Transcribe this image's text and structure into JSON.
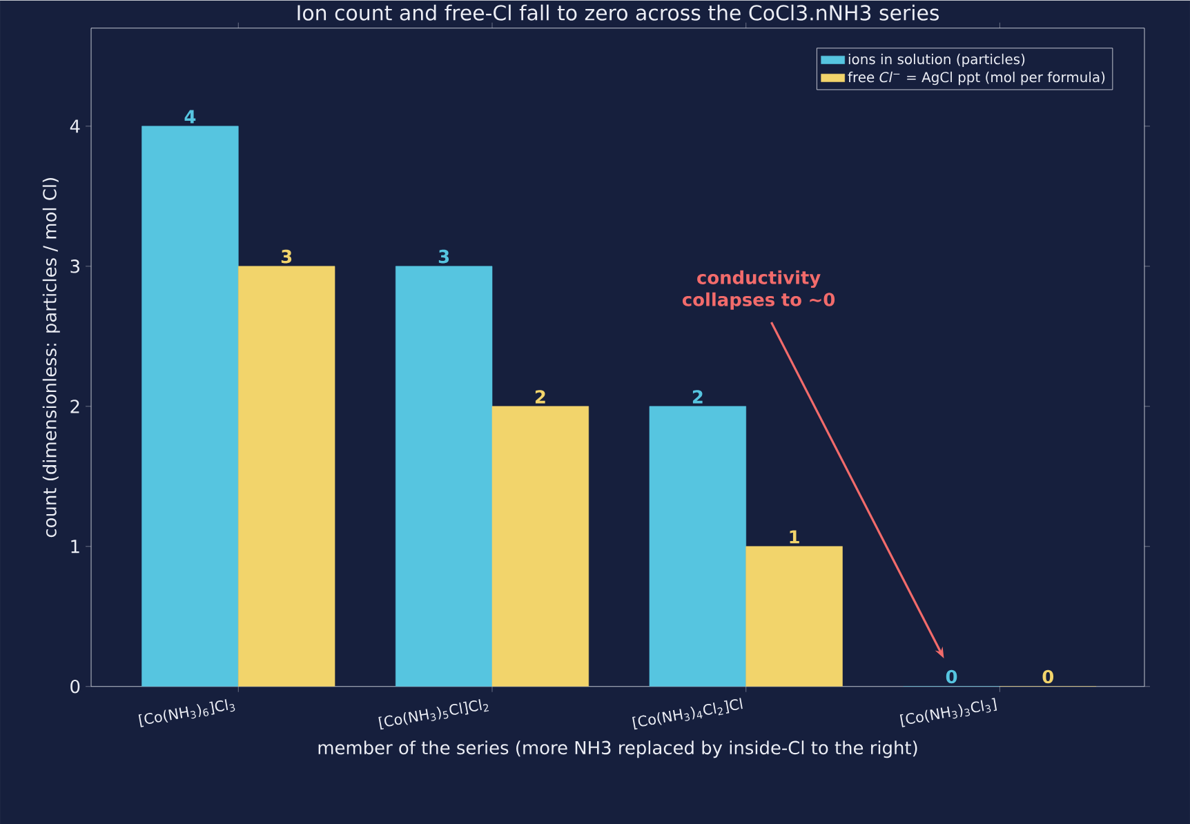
{
  "chart_data": {
    "type": "bar",
    "title": "Ion count and free-Cl fall to zero across the CoCl3.nNH3 series",
    "xlabel": "member of the series (more NH3 replaced by inside-Cl to the right)",
    "ylabel": "count  (dimensionless: particles / mol Cl)",
    "categories": [
      "[Co(NH$_{3}$)$_{6}$]Cl$_{3}$",
      "[Co(NH$_{3}$)$_{5}$Cl]Cl$_{2}$",
      "[Co(NH$_{3}$)$_{4}$Cl$_{2}$]Cl",
      "[Co(NH$_{3}$)$_{3}$Cl$_{3}$]"
    ],
    "series": [
      {
        "name": "ions in solution (particles)",
        "color": "#56c5e0",
        "values": [
          4,
          3,
          2,
          0
        ]
      },
      {
        "name": "free *Cl*$^{−}$ = AgCl ppt (mol per formula)",
        "color": "#f2d46b",
        "values": [
          3,
          2,
          1,
          0
        ]
      }
    ],
    "ylim": [
      0,
      4.7
    ],
    "yticks": [
      0,
      1,
      2,
      3,
      4
    ],
    "data_labels": true,
    "legend": "top right",
    "annotations": [
      "conductivity collapses to ~0"
    ]
  }
}
